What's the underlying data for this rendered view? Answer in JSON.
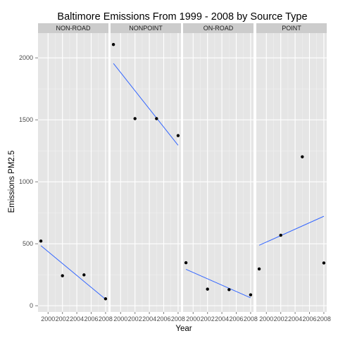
{
  "chart_data": {
    "type": "scatter",
    "title": "Baltimore Emissions From 1999 - 2008 by Source Type",
    "xlabel": "Year",
    "ylabel": "Emissions PM2.5",
    "xlim": [
      1998.6,
      2008.4
    ],
    "ylim": [
      -50,
      2200
    ],
    "x_ticks": [
      2000,
      2002,
      2004,
      2006,
      2008
    ],
    "x_tick_labels": [
      "2000",
      "2002",
      "2004",
      "2006",
      "2008"
    ],
    "y_ticks": [
      0,
      500,
      1000,
      1500,
      2000
    ],
    "y_tick_labels": [
      "0",
      "500",
      "1000",
      "1500",
      "2000"
    ],
    "grid": true,
    "panel_background": "#e5e5e5",
    "strip_background": "#cccccc",
    "point_color": "#000000",
    "trend_color": "#3366ff",
    "panels": [
      {
        "name": "NON-ROAD",
        "x": [
          1999,
          2002,
          2005,
          2008
        ],
        "y": [
          522,
          242,
          249,
          56
        ],
        "trend": {
          "x": [
            1999,
            2008
          ],
          "y": [
            485,
            52
          ]
        }
      },
      {
        "name": "NONPOINT",
        "x": [
          1999,
          2002,
          2005,
          2008
        ],
        "y": [
          2108,
          1510,
          1510,
          1373
        ],
        "trend": {
          "x": [
            1999,
            2008
          ],
          "y": [
            1955,
            1295
          ]
        }
      },
      {
        "name": "ON-ROAD",
        "x": [
          1999,
          2002,
          2005,
          2008
        ],
        "y": [
          347,
          134,
          130,
          88
        ],
        "trend": {
          "x": [
            1999,
            2008
          ],
          "y": [
            294,
            64
          ]
        }
      },
      {
        "name": "POINT",
        "x": [
          1999,
          2002,
          2005,
          2008
        ],
        "y": [
          297,
          569,
          1202,
          345
        ],
        "trend": {
          "x": [
            1999,
            2008
          ],
          "y": [
            488,
            722
          ]
        }
      }
    ]
  }
}
